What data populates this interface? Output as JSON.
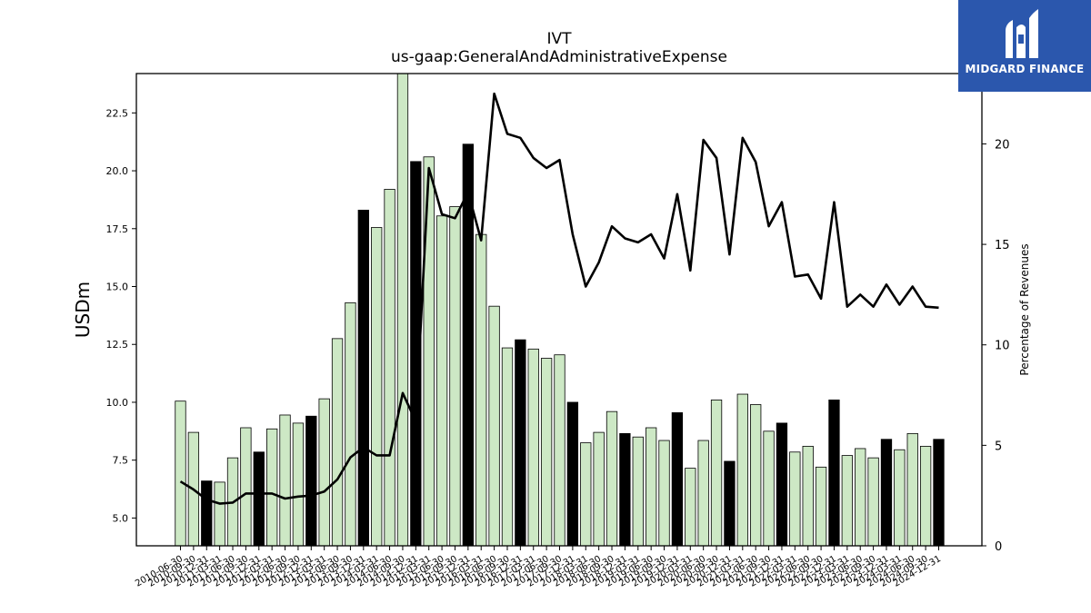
{
  "logo": {
    "text": "MIDGARD FINANCE",
    "icon": "midgard-logo-mark",
    "bg_color": "#2b57ad"
  },
  "colors": {
    "bar_light": "#cde8c5",
    "bar_dark": "#000000",
    "line": "#000000"
  },
  "chart_data": {
    "type": "bar",
    "title": "IVT",
    "subtitle": "us-gaap:GeneralAndAdministrativeExpense",
    "ylabel": "USDm",
    "ylabel_right": "Percentage of Revenues",
    "ylim": [
      3.8,
      24.2
    ],
    "ylim_right": [
      0,
      23.5
    ],
    "yticks": [
      "5.0",
      "7.5",
      "10.0",
      "12.5",
      "15.0",
      "17.5",
      "20.0",
      "22.5"
    ],
    "yticks_right": [
      "0",
      "5",
      "10",
      "15",
      "20"
    ],
    "xtick_labels": [
      "2010-06-30",
      "2010-09-30",
      "2010-12-31",
      "2011-03-31",
      "2011-06-30",
      "2011-09-30",
      "2011-12-31",
      "2012-03-31",
      "2012-06-30",
      "2012-09-30",
      "2012-12-31",
      "2013-03-31",
      "2013-06-30",
      "2013-09-30",
      "2013-12-31",
      "2014-03-31",
      "2014-06-30",
      "2014-09-30",
      "2014-12-31",
      "2015-03-31",
      "2015-06-30",
      "2015-09-30",
      "2015-12-31",
      "2016-03-31",
      "2016-06-30",
      "2016-09-30",
      "2016-12-31",
      "2017-03-31",
      "2017-06-30",
      "2017-09-30",
      "2017-12-31",
      "2018-03-31",
      "2018-06-30",
      "2018-09-30",
      "2018-12-31",
      "2019-03-31",
      "2019-06-30",
      "2019-09-30",
      "2019-12-31",
      "2020-03-31",
      "2020-06-30",
      "2020-09-30",
      "2020-12-31",
      "2021-03-31",
      "2021-06-30",
      "2021-09-30",
      "2021-12-31",
      "2022-03-31",
      "2022-06-30",
      "2022-09-30",
      "2022-12-31",
      "2023-03-31",
      "2023-06-30",
      "2023-09-30",
      "2023-12-31",
      "2024-03-31",
      "2024-06-30",
      "2024-09-30",
      "2024-12-31"
    ],
    "series": [
      {
        "type": "bar",
        "values": [
          10.05,
          8.7,
          6.6,
          6.55,
          7.6,
          8.9,
          7.85,
          8.85,
          9.45,
          9.1,
          9.4,
          10.15,
          12.75,
          14.3,
          18.3,
          17.55,
          19.2,
          24.2,
          20.4,
          20.6,
          18.05,
          18.45,
          21.15,
          17.25,
          14.15,
          12.35,
          12.7,
          12.3,
          11.9,
          12.05,
          10.0,
          8.25,
          8.7,
          9.6,
          8.65,
          8.5,
          8.9,
          8.35,
          9.55,
          7.15,
          8.35,
          10.1,
          7.45,
          10.35,
          9.9,
          8.75,
          9.1,
          7.85,
          8.1,
          7.2,
          10.1,
          7.7,
          8.0,
          7.6,
          8.4,
          7.95,
          8.65,
          8.1,
          8.4
        ],
        "dark": [
          false,
          false,
          true,
          false,
          false,
          false,
          true,
          false,
          false,
          false,
          true,
          false,
          false,
          false,
          true,
          false,
          false,
          false,
          true,
          false,
          false,
          false,
          true,
          false,
          false,
          false,
          true,
          false,
          false,
          false,
          true,
          false,
          false,
          false,
          true,
          false,
          false,
          false,
          true,
          false,
          false,
          false,
          true,
          false,
          false,
          false,
          true,
          false,
          false,
          false,
          true,
          false,
          false,
          false,
          true,
          false,
          false,
          false,
          true
        ]
      },
      {
        "type": "line",
        "axis": "right",
        "values": [
          3.2,
          2.8,
          2.3,
          2.1,
          2.15,
          2.6,
          2.6,
          2.6,
          2.35,
          2.45,
          2.5,
          2.7,
          3.3,
          4.4,
          4.9,
          4.5,
          4.5,
          7.6,
          6.2,
          18.8,
          16.5,
          16.3,
          17.6,
          15.2,
          22.5,
          20.5,
          20.3,
          19.3,
          18.8,
          19.2,
          15.5,
          12.9,
          14.1,
          15.9,
          15.3,
          15.1,
          15.5,
          14.3,
          17.5,
          13.7,
          20.2,
          19.3,
          14.5,
          20.3,
          19.1,
          15.9,
          17.1,
          13.4,
          13.5,
          12.3,
          17.1,
          11.9,
          12.5,
          11.9,
          13.0,
          12.0,
          12.9,
          11.9,
          11.85
        ]
      }
    ],
    "grid": false
  }
}
